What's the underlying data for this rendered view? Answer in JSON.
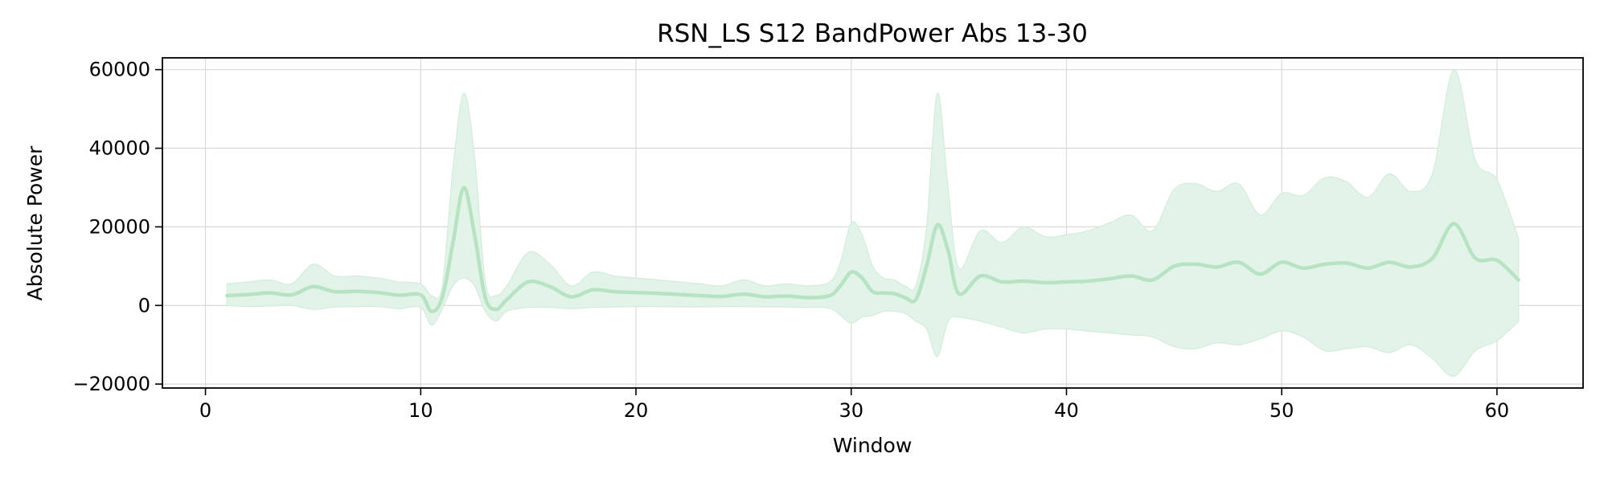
{
  "chart_data": {
    "type": "line",
    "title": "RSN_LS S12 BandPower Abs 13-30",
    "xlabel": "Window",
    "ylabel": "Absolute Power",
    "xlim": [
      -2,
      64
    ],
    "ylim": [
      -21000,
      63000
    ],
    "xticks": [
      0,
      10,
      20,
      30,
      40,
      50,
      60
    ],
    "yticks": [
      -20000,
      0,
      20000,
      40000,
      60000
    ],
    "ytick_labels": [
      "−20000",
      "0",
      "20000",
      "40000",
      "60000"
    ],
    "grid": true,
    "legend": "none",
    "colors": {
      "line": "#b7e3c4",
      "band": "#e2f3e7",
      "band_edge": "#d4ecdc"
    },
    "series": [
      {
        "x": [
          1,
          2,
          3,
          4,
          5,
          6,
          7,
          8,
          9,
          10,
          10.5,
          11,
          11.5,
          12,
          12.5,
          13,
          13.5,
          14,
          15,
          16,
          17,
          18,
          19,
          20,
          21,
          22,
          23,
          24,
          25,
          26,
          27,
          28,
          29,
          29.5,
          30,
          30.5,
          31,
          31.5,
          32,
          32.5,
          33,
          33.5,
          34,
          34.5,
          35,
          36,
          37,
          38,
          39,
          40,
          41,
          42,
          43,
          44,
          45,
          46,
          47,
          48,
          49,
          50,
          51,
          52,
          53,
          54,
          55,
          56,
          57,
          58,
          59,
          60,
          61
        ],
        "y": [
          2500,
          2800,
          3200,
          2700,
          4800,
          3500,
          3600,
          3300,
          2600,
          2700,
          -1500,
          2000,
          16000,
          30000,
          18000,
          2000,
          -1000,
          1500,
          6000,
          4800,
          2200,
          4000,
          3500,
          3300,
          3100,
          2800,
          2500,
          2300,
          2900,
          2200,
          2400,
          2000,
          2500,
          5000,
          8500,
          7000,
          3500,
          3200,
          3000,
          2000,
          1500,
          10000,
          20500,
          14000,
          3000,
          7500,
          6000,
          6200,
          5800,
          6000,
          6200,
          6800,
          7500,
          6500,
          10000,
          10500,
          9800,
          11000,
          8000,
          11000,
          9500,
          10500,
          10800,
          9500,
          11000,
          9800,
          12000,
          20800,
          12000,
          11500,
          6500
        ],
        "upper": [
          5500,
          6000,
          6500,
          5500,
          10500,
          7500,
          7500,
          7000,
          6000,
          5500,
          2500,
          5000,
          35000,
          54000,
          38000,
          6000,
          2500,
          5000,
          13500,
          10500,
          5000,
          8500,
          7500,
          7000,
          6500,
          6000,
          5500,
          5000,
          6500,
          5000,
          5500,
          5000,
          6000,
          11000,
          21000,
          18000,
          10000,
          7000,
          6500,
          5000,
          5000,
          20000,
          54000,
          30000,
          9500,
          19000,
          16000,
          20000,
          17500,
          18000,
          19000,
          21000,
          23000,
          19000,
          29500,
          31000,
          29000,
          31000,
          23000,
          28500,
          28000,
          32500,
          31500,
          27500,
          33500,
          29000,
          33500,
          60000,
          37000,
          32000,
          17000
        ],
        "lower": [
          0,
          -300,
          -200,
          0,
          -1000,
          -400,
          -300,
          -300,
          -800,
          -500,
          -5000,
          -1000,
          5000,
          7000,
          5000,
          -1500,
          -4000,
          -1500,
          -500,
          -500,
          -800,
          -500,
          -400,
          -300,
          -300,
          -400,
          -400,
          -300,
          -300,
          -400,
          -400,
          -500,
          -700,
          -2500,
          -4500,
          -3000,
          -2500,
          -1500,
          -1500,
          -2000,
          -4000,
          -6000,
          -13000,
          -4000,
          -3000,
          -4000,
          -5500,
          -7000,
          -6000,
          -6000,
          -6500,
          -7000,
          -7500,
          -8000,
          -10500,
          -11000,
          -9500,
          -10000,
          -8500,
          -6500,
          -8000,
          -11500,
          -11000,
          -10500,
          -12000,
          -10000,
          -13500,
          -18000,
          -11500,
          -9000,
          -4000
        ]
      }
    ]
  }
}
